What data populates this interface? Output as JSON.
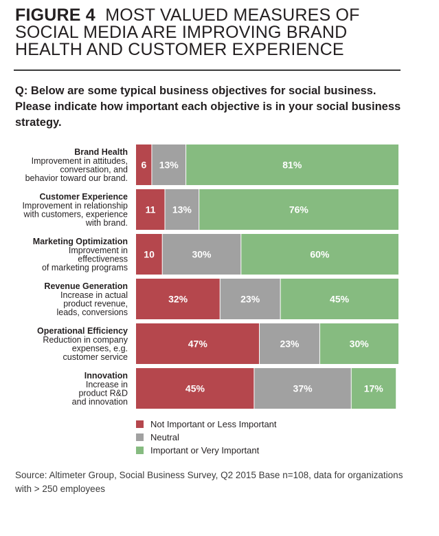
{
  "figure": {
    "label": "FIGURE 4",
    "title": "MOST VALUED MEASURES OF SOCIAL MEDIA ARE IMPROVING BRAND HEALTH AND CUSTOMER EXPERIENCE",
    "question": "Q: Below are some typical business objectives for social business. Please indicate how important each objective is in your social business strategy.",
    "source": "Source: Altimeter Group, Social Business Survey, Q2 2015 Base n=108, data for organizations with > 250 employees"
  },
  "colors": {
    "not_important": "#b5474d",
    "neutral": "#a1a1a1",
    "important": "#86bb80"
  },
  "chart_data": {
    "type": "bar",
    "orientation": "horizontal",
    "stacked": true,
    "percent": true,
    "categories": [
      {
        "title": "Brand Health",
        "description": [
          "Improvement in attitudes,",
          "conversation, and",
          "behavior toward our brand."
        ]
      },
      {
        "title": "Customer Experience",
        "description": [
          "Improvement in relationship",
          "with customers, experience",
          "with brand."
        ]
      },
      {
        "title": "Marketing Optimization",
        "description": [
          "Improvement in",
          "effectiveness",
          "of marketing programs"
        ]
      },
      {
        "title": "Revenue Generation",
        "description": [
          "Increase in actual",
          "product revenue,",
          "leads, conversions"
        ]
      },
      {
        "title": "Operational Efficiency",
        "description": [
          "Reduction in company",
          "expenses, e.g.",
          "customer service"
        ]
      },
      {
        "title": "Innovation",
        "description": [
          "Increase in",
          "product R&D",
          "and innovation"
        ]
      }
    ],
    "series": [
      {
        "name": "Not Important or Less Important",
        "color_key": "not_important",
        "values": [
          6,
          11,
          10,
          32,
          47,
          45
        ],
        "labels": [
          "6",
          "11",
          "10",
          "32%",
          "47%",
          "45%"
        ]
      },
      {
        "name": "Neutral",
        "color_key": "neutral",
        "values": [
          13,
          13,
          30,
          23,
          23,
          37
        ],
        "labels": [
          "13%",
          "13%",
          "30%",
          "23%",
          "23%",
          "37%"
        ]
      },
      {
        "name": "Important or Very Important",
        "color_key": "important",
        "values": [
          81,
          76,
          60,
          45,
          30,
          17
        ],
        "labels": [
          "81%",
          "76%",
          "60%",
          "45%",
          "30%",
          "17%"
        ]
      }
    ],
    "xlim": [
      0,
      100
    ],
    "legend_position": "bottom"
  }
}
